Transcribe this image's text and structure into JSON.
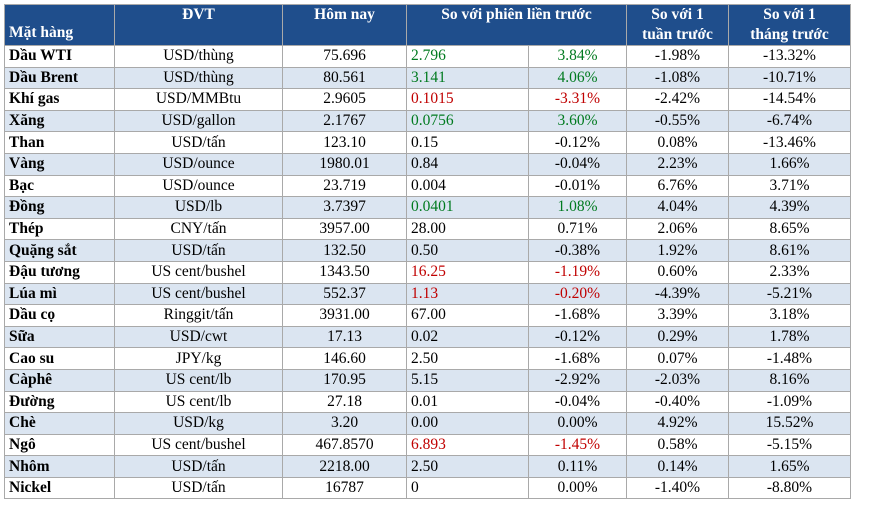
{
  "colors": {
    "header_bg": "#1f4e8c",
    "row_alt_bg": "#dbe5f1",
    "positive": "#007a1f",
    "negative": "#c00000"
  },
  "headers": {
    "item": "Mặt hàng",
    "unit": "ĐVT",
    "today": "Hôm nay",
    "vs_prev": "So với phiên liền trước",
    "vs_week_1": "So với 1",
    "vs_week_2": "tuần trước",
    "vs_month_1": "So với 1",
    "vs_month_2": "tháng trước"
  },
  "rows": [
    {
      "name": "Dầu WTI",
      "unit": "USD/thùng",
      "today": "75.696",
      "chg": "2.796",
      "pct": "3.84%",
      "wk": "-1.98%",
      "mo": "-13.32%",
      "trend": "up"
    },
    {
      "name": "Dầu Brent",
      "unit": "USD/thùng",
      "today": "80.561",
      "chg": "3.141",
      "pct": "4.06%",
      "wk": "-1.08%",
      "mo": "-10.71%",
      "trend": "up"
    },
    {
      "name": "Khí gas",
      "unit": "USD/MMBtu",
      "today": "2.9605",
      "chg": "0.1015",
      "pct": "-3.31%",
      "wk": "-2.42%",
      "mo": "-14.54%",
      "trend": "down"
    },
    {
      "name": "Xăng",
      "unit": "USD/gallon",
      "today": "2.1767",
      "chg": "0.0756",
      "pct": "3.60%",
      "wk": "-0.55%",
      "mo": "-6.74%",
      "trend": "up"
    },
    {
      "name": "Than",
      "unit": "USD/tấn",
      "today": "123.10",
      "chg": "0.15",
      "pct": "-0.12%",
      "wk": "0.08%",
      "mo": "-13.46%",
      "trend": "none"
    },
    {
      "name": "Vàng",
      "unit": "USD/ounce",
      "today": "1980.01",
      "chg": "0.84",
      "pct": "-0.04%",
      "wk": "2.23%",
      "mo": "1.66%",
      "trend": "none"
    },
    {
      "name": "Bạc",
      "unit": "USD/ounce",
      "today": "23.719",
      "chg": "0.004",
      "pct": "-0.01%",
      "wk": "6.76%",
      "mo": "3.71%",
      "trend": "none"
    },
    {
      "name": "Đồng",
      "unit": "USD/lb",
      "today": "3.7397",
      "chg": "0.0401",
      "pct": "1.08%",
      "wk": "4.04%",
      "mo": "4.39%",
      "trend": "up"
    },
    {
      "name": "Thép",
      "unit": "CNY/tấn",
      "today": "3957.00",
      "chg": "28.00",
      "pct": "0.71%",
      "wk": "2.06%",
      "mo": "8.65%",
      "trend": "none"
    },
    {
      "name": "Quặng sắt",
      "unit": "USD/tấn",
      "today": "132.50",
      "chg": "0.50",
      "pct": "-0.38%",
      "wk": "1.92%",
      "mo": "8.61%",
      "trend": "none"
    },
    {
      "name": "Đậu tương",
      "unit": "US cent/bushel",
      "today": "1343.50",
      "chg": "16.25",
      "pct": "-1.19%",
      "wk": "0.60%",
      "mo": "2.33%",
      "trend": "down"
    },
    {
      "name": "Lúa mì",
      "unit": "US cent/bushel",
      "today": "552.37",
      "chg": "1.13",
      "pct": "-0.20%",
      "wk": "-4.39%",
      "mo": "-5.21%",
      "trend": "down"
    },
    {
      "name": "Dầu cọ",
      "unit": "Ringgit/tấn",
      "today": "3931.00",
      "chg": "67.00",
      "pct": "-1.68%",
      "wk": "3.39%",
      "mo": "3.18%",
      "trend": "none"
    },
    {
      "name": "Sữa",
      "unit": "USD/cwt",
      "today": "17.13",
      "chg": "0.02",
      "pct": "-0.12%",
      "wk": "0.29%",
      "mo": "1.78%",
      "trend": "none"
    },
    {
      "name": "Cao su",
      "unit": "JPY/kg",
      "today": "146.60",
      "chg": "2.50",
      "pct": "-1.68%",
      "wk": "0.07%",
      "mo": "-1.48%",
      "trend": "none"
    },
    {
      "name": "Càphê",
      "unit": "US cent/lb",
      "today": "170.95",
      "chg": "5.15",
      "pct": "-2.92%",
      "wk": "-2.03%",
      "mo": "8.16%",
      "trend": "none"
    },
    {
      "name": "Đường",
      "unit": "US cent/lb",
      "today": "27.18",
      "chg": "0.01",
      "pct": "-0.04%",
      "wk": "-0.40%",
      "mo": "-1.09%",
      "trend": "none"
    },
    {
      "name": "Chè",
      "unit": "USD/kg",
      "today": "3.20",
      "chg": "0.00",
      "pct": "0.00%",
      "wk": "4.92%",
      "mo": "15.52%",
      "trend": "none"
    },
    {
      "name": "Ngô",
      "unit": "US cent/bushel",
      "today": "467.8570",
      "chg": "6.893",
      "pct": "-1.45%",
      "wk": "0.58%",
      "mo": "-5.15%",
      "trend": "down"
    },
    {
      "name": "Nhôm",
      "unit": "USD/tấn",
      "today": "2218.00",
      "chg": "2.50",
      "pct": "0.11%",
      "wk": "0.14%",
      "mo": "1.65%",
      "trend": "none"
    },
    {
      "name": "Nickel",
      "unit": "USD/tấn",
      "today": "16787",
      "chg": "0",
      "pct": "0.00%",
      "wk": "-1.40%",
      "mo": "-8.80%",
      "trend": "none"
    }
  ]
}
